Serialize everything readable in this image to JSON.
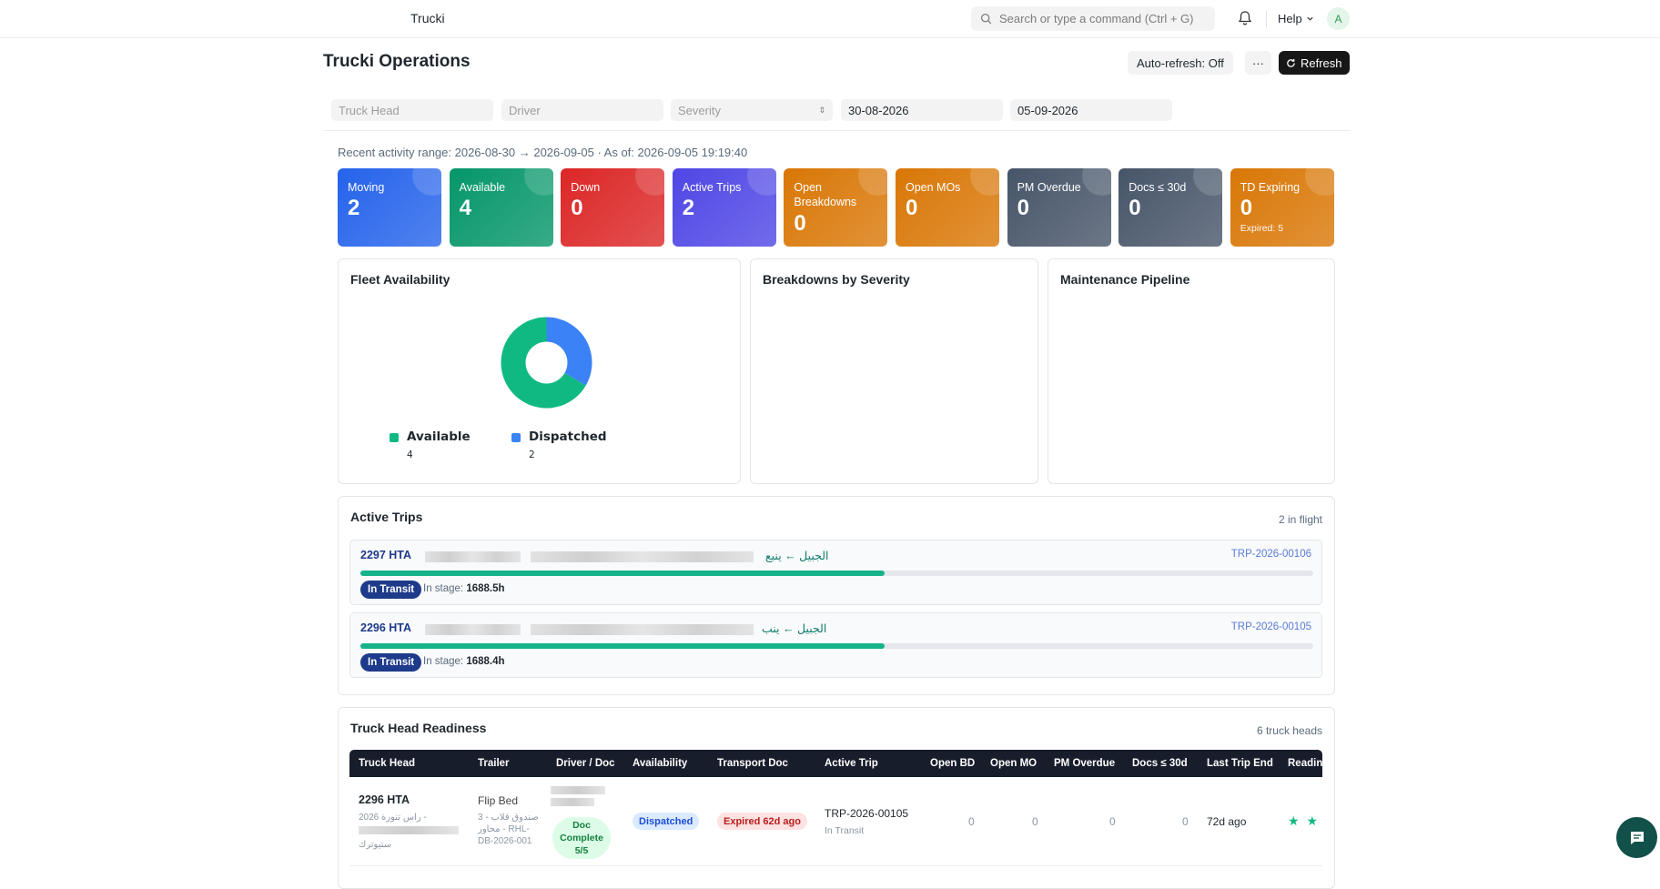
{
  "navbar": {
    "brand": "Trucki",
    "search_placeholder": "Search or type a command (Ctrl + G)",
    "help_label": "Help",
    "avatar_initial": "A"
  },
  "page": {
    "title": "Trucki Operations",
    "auto_refresh_label": "Auto-refresh: Off",
    "more_label": "···",
    "refresh_label": "Refresh"
  },
  "filters": {
    "truck_head_placeholder": "Truck Head",
    "driver_placeholder": "Driver",
    "severity_placeholder": "Severity",
    "date_from": "30-08-2026",
    "date_to": "05-09-2026"
  },
  "range_text": "Recent activity range: 2026-08-30 → 2026-09-05 · As of: 2026-09-05 19:19:40",
  "kpis": [
    {
      "label": "Moving",
      "value": "2",
      "color": "#2563eb"
    },
    {
      "label": "Available",
      "value": "4",
      "color": "#059669"
    },
    {
      "label": "Down",
      "value": "0",
      "color": "#dc2626"
    },
    {
      "label": "Active Trips",
      "value": "2",
      "color": "#4f46e5"
    },
    {
      "label": "Open Breakdowns",
      "value": "0",
      "color": "#d97706"
    },
    {
      "label": "Open MOs",
      "value": "0",
      "color": "#d97706"
    },
    {
      "label": "PM Overdue",
      "value": "0",
      "color": "#475569"
    },
    {
      "label": "Docs ≤ 30d",
      "value": "0",
      "color": "#475569"
    },
    {
      "label": "TD Expiring",
      "value": "0",
      "sub": "Expired: 5",
      "color": "#d97706"
    }
  ],
  "panels": {
    "fleet_title": "Fleet Availability",
    "breakdowns_title": "Breakdowns by Severity",
    "maintenance_title": "Maintenance Pipeline"
  },
  "chart_data": {
    "type": "pie",
    "title": "Fleet Availability",
    "categories": [
      "Available",
      "Dispatched"
    ],
    "values": [
      4,
      2
    ],
    "colors": [
      "#10b981",
      "#3b82f6"
    ],
    "legend": "bottom",
    "donut": true
  },
  "active_trips": {
    "title": "Active Trips",
    "count_label": "2 in flight",
    "trips": [
      {
        "truck": "2297 HTA",
        "route": "الجبيل ← ينبع",
        "code": "TRP-2026-00106",
        "progress": 0.55,
        "status": "In Transit",
        "stage_label": "In stage:",
        "stage_value": "1688.5h"
      },
      {
        "truck": "2296 HTA",
        "route": "الجبيل ← ينب",
        "code": "TRP-2026-00105",
        "progress": 0.55,
        "status": "In Transit",
        "stage_label": "In stage:",
        "stage_value": "1688.4h"
      }
    ]
  },
  "readiness": {
    "title": "Truck Head Readiness",
    "count_label": "6 truck heads",
    "columns": [
      "Truck Head",
      "Trailer",
      "Driver / Doc",
      "Availability",
      "Transport Doc",
      "Active Trip",
      "Open BD",
      "Open MO",
      "PM Overdue",
      "Docs ≤ 30d",
      "Last Trip End",
      "Readin"
    ],
    "row": {
      "truck": "2296 HTA",
      "truck_sub1": "- راس تنورة 2026",
      "truck_sub2": "ستيوترك",
      "trailer": "Flip Bed",
      "trailer_sub": "3 صندوق قلاب - محاور - RHL-DB-2026-001",
      "doc_badge": "Doc Complete 5/5",
      "availability": "Dispatched",
      "transport_doc": "Expired 62d ago",
      "active_trip": "TRP-2026-00105",
      "active_trip_status": "In Transit",
      "open_bd": "0",
      "open_mo": "0",
      "pm_overdue": "0",
      "docs_30d": "0",
      "last_trip_end": "72d ago",
      "readiness_stars": "★ ★ ★"
    }
  }
}
